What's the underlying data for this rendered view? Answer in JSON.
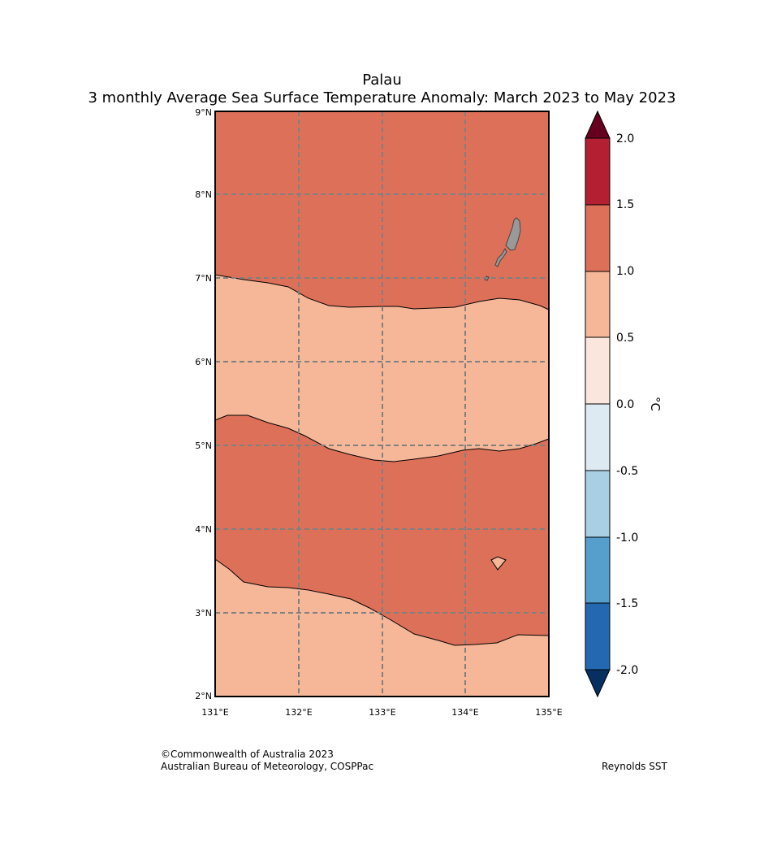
{
  "title": {
    "line1": "Palau",
    "line2": "3 monthly Average Sea Surface Temperature Anomaly: March 2023 to May 2023"
  },
  "map": {
    "lat_labels": [
      "9°N",
      "8°N",
      "7°N",
      "6°N",
      "5°N",
      "4°N",
      "3°N",
      "2°N"
    ],
    "lon_labels": [
      "131°E",
      "132°E",
      "133°E",
      "134°E",
      "135°E"
    ],
    "lat_range": [
      2,
      9
    ],
    "lon_range": [
      131,
      135
    ],
    "fill_colors": {
      "band_1_0_to_1_5": "#dd7059",
      "band_0_5_to_1_0": "#f5b798",
      "land": "#999999",
      "grid": "#808080"
    }
  },
  "colorbar": {
    "unit_label": "°C",
    "tick_labels": [
      "2.0",
      "1.5",
      "1.0",
      "0.5",
      "0.0",
      "-0.5",
      "-1.0",
      "-1.5",
      "-2.0"
    ],
    "colors": [
      "#b42032",
      "#dd7059",
      "#f5b798",
      "#fae6dc",
      "#deeaf2",
      "#a8cfe4",
      "#569fcd",
      "#2468b1"
    ],
    "over_color": "#67001f",
    "under_color": "#053061"
  },
  "footer": {
    "copyright_line1": "©Commonwealth of Australia 2023",
    "copyright_line2": "Australian Bureau of Meteorology, COSPPac",
    "source": "Reynolds SST"
  }
}
